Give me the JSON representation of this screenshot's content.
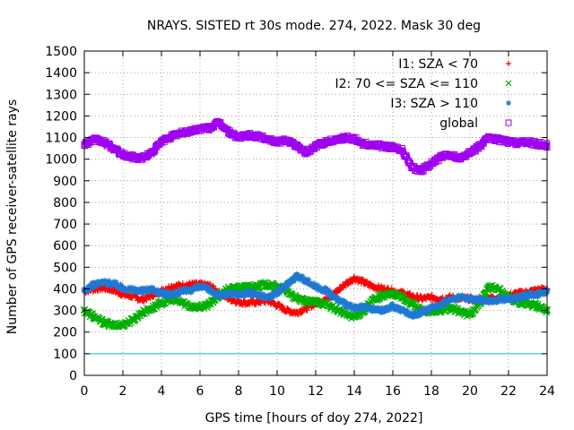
{
  "chart_data": {
    "type": "scatter",
    "title": "NRAYS. SISTED rt 30s mode. 274, 2022. Mask 30 deg",
    "xlabel": "GPS time [hours of doy 274, 2022]",
    "ylabel": "Number of GPS receiver-satellite rays",
    "xlim": [
      0,
      24
    ],
    "ylim": [
      0,
      1500
    ],
    "xticks": [
      0,
      2,
      4,
      6,
      8,
      10,
      12,
      14,
      16,
      18,
      20,
      22,
      24
    ],
    "yticks": [
      0,
      100,
      200,
      300,
      400,
      500,
      600,
      700,
      800,
      900,
      1000,
      1100,
      1200,
      1300,
      1400,
      1500
    ],
    "grid": true,
    "legend_position": "top-right",
    "threshold_line": {
      "y": 100,
      "color": "#00c8c8"
    },
    "series": [
      {
        "name": "I1: SZA < 70",
        "color": "#ff0000",
        "marker": "+",
        "x": [
          0,
          0.5,
          1,
          1.5,
          2,
          2.5,
          3,
          3.5,
          4,
          4.5,
          5,
          5.5,
          6,
          6.5,
          7,
          7.5,
          8,
          8.5,
          9,
          9.5,
          10,
          10.5,
          11,
          11.5,
          12,
          12.5,
          13,
          13.5,
          14,
          14.5,
          15,
          15.5,
          16,
          16.5,
          17,
          17.5,
          18,
          18.5,
          19,
          19.5,
          20,
          20.5,
          21,
          21.5,
          22,
          22.5,
          23,
          23.5,
          24
        ],
        "values": [
          390,
          400,
          405,
          395,
          375,
          365,
          350,
          370,
          390,
          410,
          415,
          420,
          420,
          415,
          380,
          355,
          340,
          335,
          340,
          345,
          325,
          300,
          290,
          310,
          335,
          350,
          380,
          420,
          450,
          430,
          410,
          400,
          390,
          380,
          365,
          355,
          360,
          355,
          360,
          355,
          355,
          340,
          360,
          360,
          370,
          380,
          385,
          395,
          400
        ]
      },
      {
        "name": "I2: 70 <= SZA <= 110",
        "color": "#00b000",
        "marker": "x",
        "x": [
          0,
          0.5,
          1,
          1.5,
          2,
          2.5,
          3,
          3.5,
          4,
          4.5,
          5,
          5.5,
          6,
          6.5,
          7,
          7.5,
          8,
          8.5,
          9,
          9.5,
          10,
          10.5,
          11,
          11.5,
          12,
          12.5,
          13,
          13.5,
          14,
          14.5,
          15,
          15.5,
          16,
          16.5,
          17,
          17.5,
          18,
          18.5,
          19,
          19.5,
          20,
          20.5,
          21,
          21.5,
          22,
          22.5,
          23,
          23.5,
          24
        ],
        "values": [
          300,
          270,
          245,
          230,
          235,
          255,
          290,
          310,
          335,
          350,
          340,
          320,
          315,
          330,
          370,
          400,
          405,
          410,
          415,
          420,
          410,
          390,
          355,
          340,
          340,
          330,
          310,
          285,
          270,
          300,
          350,
          370,
          375,
          360,
          330,
          300,
          290,
          300,
          310,
          295,
          280,
          330,
          410,
          400,
          360,
          340,
          330,
          320,
          300
        ]
      },
      {
        "name": "I3: SZA > 110",
        "color": "#1e78d2",
        "marker": "*",
        "x": [
          0,
          0.5,
          1,
          1.5,
          2,
          2.5,
          3,
          3.5,
          4,
          4.5,
          5,
          5.5,
          6,
          6.5,
          7,
          7.5,
          8,
          8.5,
          9,
          9.5,
          10,
          10.5,
          11,
          11.5,
          12,
          12.5,
          13,
          13.5,
          14,
          14.5,
          15,
          15.5,
          16,
          16.5,
          17,
          17.5,
          18,
          18.5,
          19,
          19.5,
          20,
          20.5,
          21,
          21.5,
          22,
          22.5,
          23,
          23.5,
          24
        ],
        "values": [
          390,
          420,
          430,
          425,
          405,
          395,
          390,
          400,
          380,
          375,
          385,
          395,
          410,
          395,
          370,
          375,
          375,
          380,
          375,
          360,
          380,
          420,
          460,
          440,
          410,
          395,
          360,
          330,
          310,
          315,
          305,
          300,
          320,
          300,
          280,
          290,
          310,
          330,
          350,
          360,
          355,
          350,
          345,
          350,
          355,
          360,
          370,
          375,
          385
        ]
      },
      {
        "name": "global",
        "color": "#a000f0",
        "marker": "square",
        "x": [
          0,
          0.5,
          1,
          1.5,
          2,
          2.5,
          3,
          3.5,
          4,
          4.5,
          5,
          5.5,
          6,
          6.5,
          7,
          7.5,
          8,
          8.5,
          9,
          9.5,
          10,
          10.5,
          11,
          11.5,
          12,
          12.5,
          13,
          13.5,
          14,
          14.5,
          15,
          15.5,
          16,
          16.5,
          17,
          17.5,
          18,
          18.5,
          19,
          19.5,
          20,
          20.5,
          21,
          21.5,
          22,
          22.5,
          23,
          23.5,
          24
        ],
        "values": [
          1070,
          1090,
          1080,
          1050,
          1020,
          1010,
          1005,
          1030,
          1080,
          1105,
          1120,
          1130,
          1140,
          1145,
          1170,
          1125,
          1100,
          1110,
          1105,
          1095,
          1080,
          1090,
          1060,
          1030,
          1060,
          1080,
          1090,
          1100,
          1095,
          1070,
          1065,
          1060,
          1055,
          1040,
          960,
          950,
          980,
          1010,
          1020,
          1000,
          1030,
          1060,
          1100,
          1090,
          1080,
          1075,
          1080,
          1070,
          1065
        ]
      }
    ]
  }
}
